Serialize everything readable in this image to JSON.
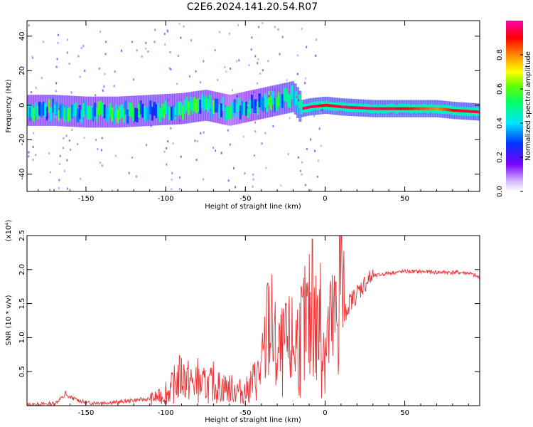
{
  "title": "C2E6.2024.141.20.54.R07",
  "colors": {
    "snr_line": "#ee3333",
    "ridge_core": "#ff1f1f",
    "axis": "#000000"
  },
  "chart_data": [
    {
      "type": "heatmap",
      "title": "C2E6.2024.141.20.54.R07",
      "xlabel": "Height of straight line (km)",
      "ylabel": "Frequency (Hz)",
      "xlim": [
        -187,
        97
      ],
      "ylim": [
        -50,
        49
      ],
      "xticks": [
        -150,
        -100,
        -50,
        0,
        50
      ],
      "yticks": [
        -40,
        -20,
        0,
        20,
        40
      ],
      "grid": false,
      "colorbar": {
        "label": "Normalized spectral amplitude",
        "range": [
          0,
          1
        ],
        "ticks": [
          0.0,
          0.2,
          0.4,
          0.6,
          0.8
        ],
        "tick_labels": [
          "0.0",
          "0.2",
          "0.4",
          "0.6",
          "0.8"
        ],
        "colormap": "rainbow (white-violet-blue-cyan-green-yellow-red-magenta)"
      },
      "ridge": {
        "x": [
          -187,
          -170,
          -150,
          -130,
          -110,
          -90,
          -75,
          -60,
          -50,
          -40,
          -30,
          -20,
          -15,
          -10,
          0,
          10,
          30,
          50,
          70,
          80,
          97
        ],
        "frequency_hz": [
          -3,
          -3,
          -4,
          -4,
          -3,
          -2,
          0,
          -3,
          -1,
          1,
          3,
          5,
          -2,
          -1,
          0,
          -1,
          -2,
          -2,
          -2,
          -3,
          -4
        ],
        "amplitude": [
          0.35,
          0.45,
          0.4,
          0.4,
          0.45,
          0.4,
          0.45,
          0.3,
          0.35,
          0.4,
          0.45,
          0.5,
          0.95,
          0.95,
          0.9,
          0.95,
          0.95,
          0.9,
          0.8,
          0.9,
          0.95
        ]
      }
    },
    {
      "type": "line",
      "title": "",
      "xlabel": "Height of straight line (km)",
      "ylabel": "SNR (10 * v/v)",
      "ylabel_multiplier": "(x10⁴)",
      "xlim": [
        -187,
        97
      ],
      "ylim": [
        0,
        2.5
      ],
      "xticks": [
        -150,
        -100,
        -50,
        0,
        50
      ],
      "yticks": [
        0.5,
        1.0,
        1.5,
        2.0,
        2.5
      ],
      "ytick_labels": [
        "0.5",
        "1.0",
        "1.5",
        "2.0",
        "2.5"
      ],
      "grid": false,
      "series": [
        {
          "name": "",
          "x": [
            -187,
            -170,
            -163,
            -150,
            -130,
            -120,
            -110,
            -100,
            -95,
            -90,
            -85,
            -80,
            -70,
            -60,
            -50,
            -45,
            -40,
            -37,
            -35,
            -33,
            -30,
            -25,
            -20,
            -15,
            -10,
            -5,
            0,
            5,
            8,
            10,
            12,
            15,
            20,
            25,
            30,
            40,
            50,
            60,
            70,
            80,
            90,
            97
          ],
          "y": [
            0.01,
            0.03,
            0.15,
            0.04,
            0.05,
            0.08,
            0.1,
            0.15,
            0.3,
            0.45,
            0.35,
            0.3,
            0.3,
            0.25,
            0.2,
            0.35,
            0.5,
            0.9,
            1.35,
            1.0,
            0.7,
            0.8,
            0.9,
            1.0,
            1.2,
            1.1,
            0.95,
            1.1,
            1.3,
            2.2,
            1.3,
            1.5,
            1.65,
            1.8,
            1.9,
            1.95,
            1.97,
            1.97,
            1.96,
            1.96,
            1.95,
            1.88
          ],
          "spikes": [
            {
              "x": -163,
              "y": 0.22
            },
            {
              "x": -100,
              "y": 0.35
            },
            {
              "x": -90,
              "y": 0.7
            },
            {
              "x": -80,
              "y": 0.7
            },
            {
              "x": -70,
              "y": 0.65
            },
            {
              "x": -36,
              "y": 1.8
            },
            {
              "x": -25,
              "y": 1.5
            },
            {
              "x": -15,
              "y": 1.75
            },
            {
              "x": -8,
              "y": 2.45
            },
            {
              "x": -3,
              "y": 2.1
            },
            {
              "x": 3,
              "y": 1.75
            },
            {
              "x": 9,
              "y": 2.5
            }
          ]
        }
      ]
    }
  ]
}
